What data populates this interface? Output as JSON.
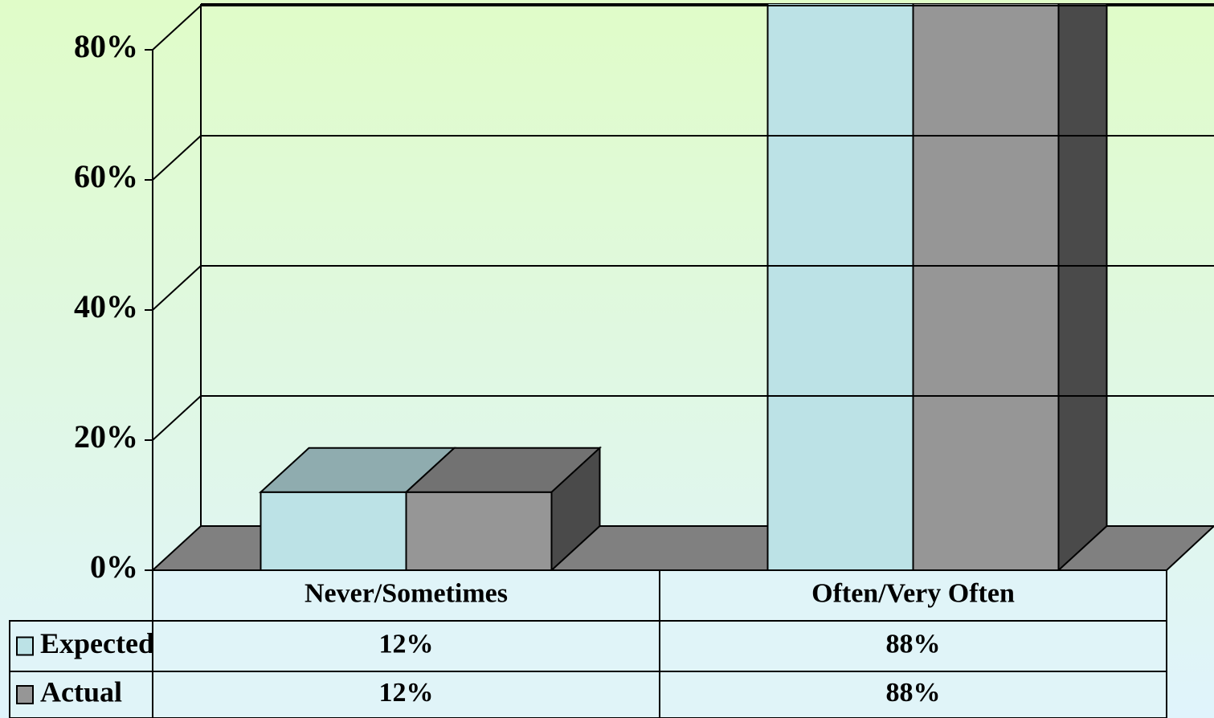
{
  "chart_data": {
    "type": "bar3d",
    "categories": [
      "Never/Sometimes",
      "Often/Very Often"
    ],
    "series": [
      {
        "name": "Expected",
        "color": "#bce2e6",
        "values": [
          12,
          88
        ],
        "value_labels": [
          "12%",
          "88%"
        ]
      },
      {
        "name": "Actual",
        "color": "#969696",
        "values": [
          12,
          88
        ],
        "value_labels": [
          "12%",
          "88%"
        ]
      }
    ],
    "ylim": [
      0,
      80
    ],
    "yticks": [
      {
        "value": 0,
        "label": "0%"
      },
      {
        "value": 20,
        "label": "20%"
      },
      {
        "value": 40,
        "label": "40%"
      },
      {
        "value": 60,
        "label": "60%"
      },
      {
        "value": 80,
        "label": "80%"
      }
    ],
    "grid": true,
    "legend": "table"
  }
}
